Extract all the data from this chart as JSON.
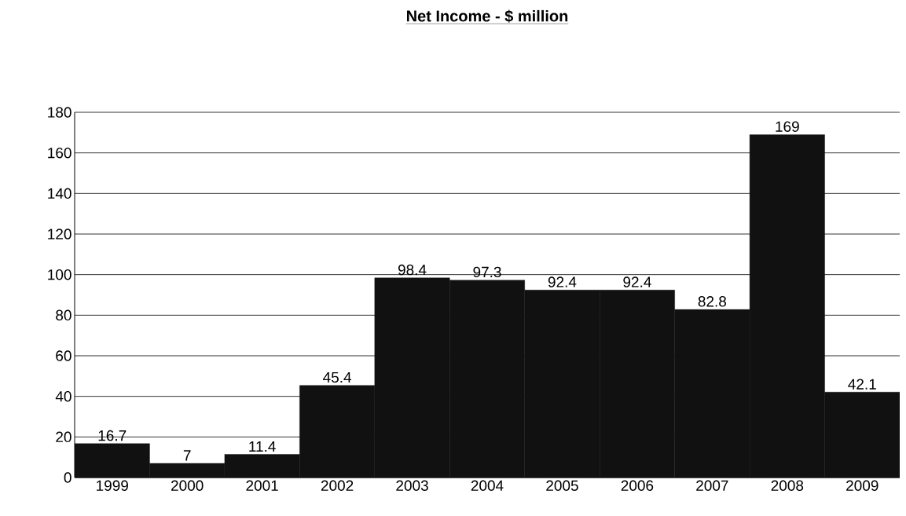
{
  "chart_data": {
    "type": "bar",
    "title": "Net Income - $ million",
    "categories": [
      "1999",
      "2000",
      "2001",
      "2002",
      "2003",
      "2004",
      "2005",
      "2006",
      "2007",
      "2008",
      "2009"
    ],
    "values": [
      16.7,
      7,
      11.4,
      45.4,
      98.4,
      97.3,
      92.4,
      92.4,
      82.8,
      169,
      42.1
    ],
    "color": "#111111",
    "ylim": [
      0,
      180
    ],
    "yticks": [
      0,
      20,
      40,
      60,
      80,
      100,
      120,
      140,
      160,
      180
    ],
    "grid": "y",
    "data_labels": true
  }
}
